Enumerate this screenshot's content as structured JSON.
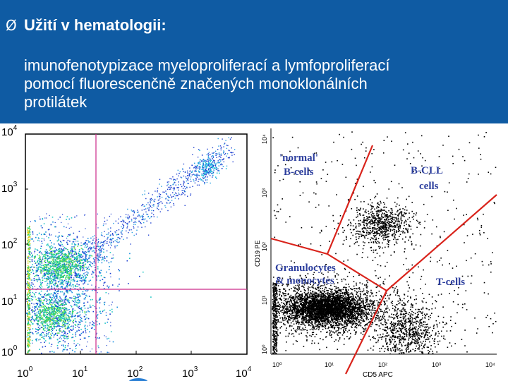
{
  "slide": {
    "bullet": "Ø",
    "title": "Užití v hematologii:",
    "body_line1": "imunofenotypizace myeloproliferací a lymfoproliferací",
    "body_line2": "pomocí fluorescenčně značených monoklonálních",
    "body_line3": "protilátek"
  },
  "colors": {
    "header_bg": "#0f5ba3",
    "gate_line": "#cc2a8a",
    "region_line": "#d9231b",
    "annotation": "#2d3f9e"
  },
  "left_plot": {
    "y_ticks": [
      {
        "base": "10",
        "exp": "4"
      },
      {
        "base": "10",
        "exp": "3"
      },
      {
        "base": "10",
        "exp": "2"
      },
      {
        "base": "10",
        "exp": "1"
      },
      {
        "base": "10",
        "exp": "0"
      }
    ],
    "x_ticks": [
      {
        "base": "10",
        "exp": "0"
      },
      {
        "base": "10",
        "exp": "1"
      },
      {
        "base": "10",
        "exp": "2"
      },
      {
        "base": "10",
        "exp": "3"
      },
      {
        "base": "10",
        "exp": "4"
      }
    ]
  },
  "right_plot": {
    "y_axis_label": "CD19 PE",
    "x_axis_label": "CD5 APC",
    "y_ticks": [
      "10⁴",
      "10³",
      "10²",
      "10¹",
      "10⁰"
    ],
    "x_ticks": [
      "10⁰",
      "10¹",
      "10²",
      "10³",
      "10⁴"
    ],
    "annotations": {
      "normal_line1": "'normal'",
      "normal_line2": "B-cells",
      "bcll_line1": "B-CLL",
      "bcll_line2": "cells",
      "gran_line1": "Granulocytes",
      "gran_line2": "& monocytes",
      "tcells": "T-cells"
    }
  }
}
